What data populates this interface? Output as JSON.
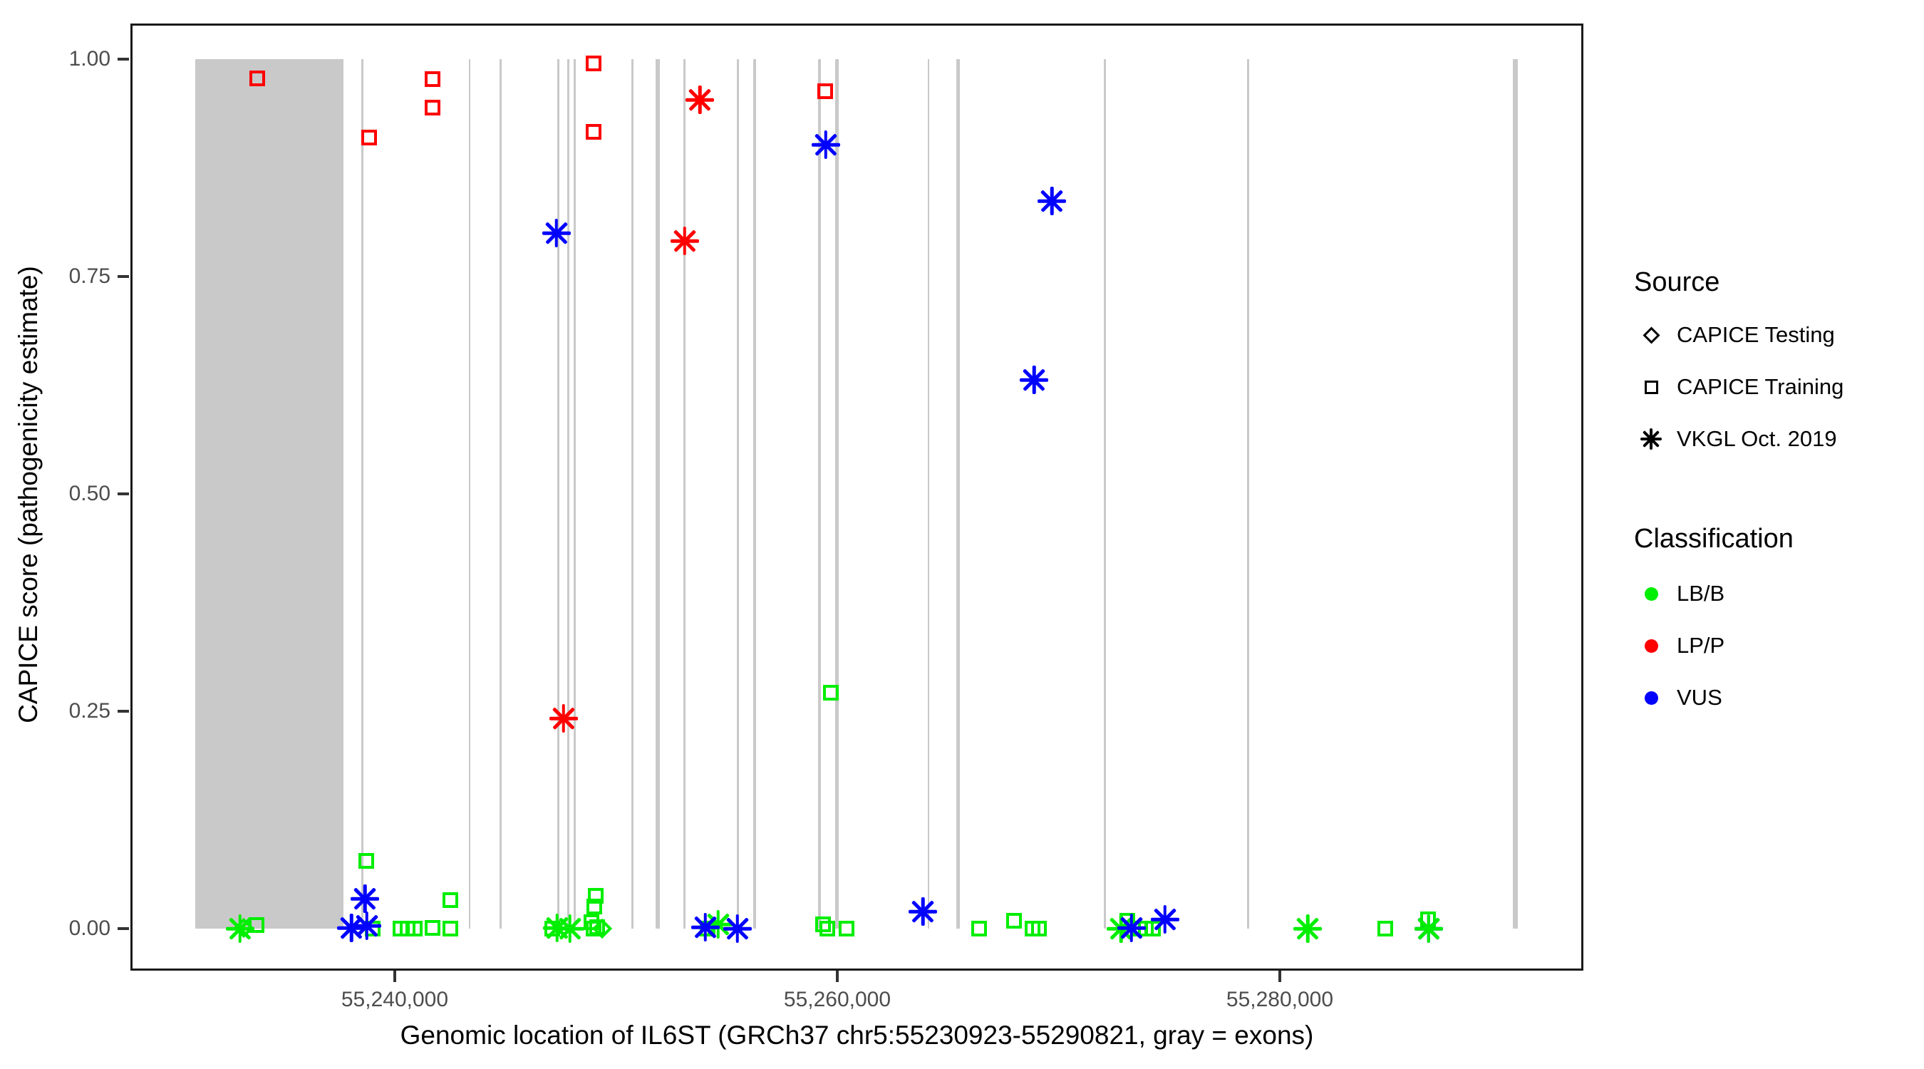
{
  "figure": {
    "background": "#ffffff",
    "panel_border_color": "#1a1a1a",
    "exon_color": "#c9c9c9",
    "tick_text_color": "#4d4d4d"
  },
  "y_axis": {
    "title": "CAPICE score (pathogenicity estimate)",
    "ticks": [
      {
        "label": "0.00",
        "value": 0.0
      },
      {
        "label": "0.25",
        "value": 0.25
      },
      {
        "label": "0.50",
        "value": 0.5
      },
      {
        "label": "0.75",
        "value": 0.75
      },
      {
        "label": "1.00",
        "value": 1.0
      }
    ]
  },
  "x_axis": {
    "title": "Genomic location of IL6ST (GRCh37 chr5:55230923-55290821, gray = exons)",
    "ticks": [
      {
        "label": "55,240,000",
        "value": 55240000
      },
      {
        "label": "55,260,000",
        "value": 55260000
      },
      {
        "label": "55,280,000",
        "value": 55280000
      }
    ]
  },
  "legend": {
    "source": {
      "title": "Source",
      "items": [
        {
          "label": "CAPICE Testing",
          "shape": "diamond"
        },
        {
          "label": "CAPICE Training",
          "shape": "square"
        },
        {
          "label": "VKGL Oct. 2019",
          "shape": "star"
        }
      ]
    },
    "classification": {
      "title": "Classification",
      "items": [
        {
          "label": "LB/B",
          "color": "#00ee00"
        },
        {
          "label": "LP/P",
          "color": "#ff0000"
        },
        {
          "label": "VUS",
          "color": "#0000ff"
        }
      ]
    }
  },
  "chart_data": {
    "type": "scatter",
    "title": "",
    "xlabel": "Genomic location of IL6ST (GRCh37 chr5:55230923-55290821, gray = exons)",
    "ylabel": "CAPICE score (pathogenicity estimate)",
    "x_limits_bp": [
      55228053,
      55293720
    ],
    "y_limits": [
      -0.0484,
      1.041
    ],
    "grid": "off",
    "legend_position": "right",
    "class_colors": {
      "LB/B": "#00ee00",
      "LP/P": "#ff0000",
      "VUS": "#0000ff"
    },
    "source_shapes": {
      "CAPICE Testing": "diamond",
      "CAPICE Training": "square",
      "VKGL Oct. 2019": "star"
    },
    "exons_bp": [
      {
        "start": 55230980,
        "end": 55237680
      },
      {
        "start": 55238480,
        "end": 55238570
      },
      {
        "start": 55243340,
        "end": 55243430
      },
      {
        "start": 55244730,
        "end": 55244820
      },
      {
        "start": 55247330,
        "end": 55247430
      },
      {
        "start": 55247790,
        "end": 55247880
      },
      {
        "start": 55248080,
        "end": 55248170
      },
      {
        "start": 55250690,
        "end": 55250790
      },
      {
        "start": 55251790,
        "end": 55251990
      },
      {
        "start": 55253050,
        "end": 55253130
      },
      {
        "start": 55255460,
        "end": 55255530
      },
      {
        "start": 55256200,
        "end": 55256330
      },
      {
        "start": 55259120,
        "end": 55259270
      },
      {
        "start": 55259920,
        "end": 55260080
      },
      {
        "start": 55264090,
        "end": 55264170
      },
      {
        "start": 55265390,
        "end": 55265550
      },
      {
        "start": 55272030,
        "end": 55272130
      },
      {
        "start": 55278530,
        "end": 55278630
      },
      {
        "start": 55290540,
        "end": 55290770
      }
    ],
    "points": [
      {
        "bp": 55233000,
        "score": 0.0,
        "class": "LB/B",
        "source": "VKGL Oct. 2019"
      },
      {
        "bp": 55233180,
        "score": 0.001,
        "class": "LB/B",
        "source": "CAPICE Testing"
      },
      {
        "bp": 55233750,
        "score": 0.004,
        "class": "LB/B",
        "source": "CAPICE Training"
      },
      {
        "bp": 55238710,
        "score": 0.078,
        "class": "LB/B",
        "source": "CAPICE Training"
      },
      {
        "bp": 55239000,
        "score": 0.0,
        "class": "LB/B",
        "source": "CAPICE Training"
      },
      {
        "bp": 55240260,
        "score": 0.0,
        "class": "LB/B",
        "source": "CAPICE Training"
      },
      {
        "bp": 55240580,
        "score": 0.0,
        "class": "LB/B",
        "source": "CAPICE Training"
      },
      {
        "bp": 55240900,
        "score": 0.0,
        "class": "LB/B",
        "source": "CAPICE Training"
      },
      {
        "bp": 55241710,
        "score": 0.001,
        "class": "LB/B",
        "source": "CAPICE Training"
      },
      {
        "bp": 55242510,
        "score": 0.033,
        "class": "LB/B",
        "source": "CAPICE Training"
      },
      {
        "bp": 55242510,
        "score": 0.0,
        "class": "LB/B",
        "source": "CAPICE Training"
      },
      {
        "bp": 55247120,
        "score": 0.0,
        "class": "LB/B",
        "source": "CAPICE Training"
      },
      {
        "bp": 55247340,
        "score": 0.001,
        "class": "LB/B",
        "source": "VKGL Oct. 2019"
      },
      {
        "bp": 55247920,
        "score": 0.0,
        "class": "LB/B",
        "source": "VKGL Oct. 2019"
      },
      {
        "bp": 55249080,
        "score": 0.038,
        "class": "LB/B",
        "source": "CAPICE Training"
      },
      {
        "bp": 55249020,
        "score": 0.025,
        "class": "LB/B",
        "source": "CAPICE Training"
      },
      {
        "bp": 55248890,
        "score": 0.007,
        "class": "LB/B",
        "source": "CAPICE Training"
      },
      {
        "bp": 55249150,
        "score": 0.002,
        "class": "LB/B",
        "source": "CAPICE Training"
      },
      {
        "bp": 55248990,
        "score": 0.0,
        "class": "LB/B",
        "source": "CAPICE Training"
      },
      {
        "bp": 55249370,
        "score": 0.0,
        "class": "LB/B",
        "source": "CAPICE Testing"
      },
      {
        "bp": 55254130,
        "score": 0.0,
        "class": "LB/B",
        "source": "CAPICE Training"
      },
      {
        "bp": 55254620,
        "score": 0.005,
        "class": "LB/B",
        "source": "VKGL Oct. 2019"
      },
      {
        "bp": 55259710,
        "score": 0.271,
        "class": "LB/B",
        "source": "CAPICE Training"
      },
      {
        "bp": 55259350,
        "score": 0.005,
        "class": "LB/B",
        "source": "CAPICE Training"
      },
      {
        "bp": 55259550,
        "score": 0.0,
        "class": "LB/B",
        "source": "CAPICE Training"
      },
      {
        "bp": 55260420,
        "score": 0.0,
        "class": "LB/B",
        "source": "CAPICE Training"
      },
      {
        "bp": 55266420,
        "score": 0.0,
        "class": "LB/B",
        "source": "CAPICE Training"
      },
      {
        "bp": 55268000,
        "score": 0.009,
        "class": "LB/B",
        "source": "CAPICE Training"
      },
      {
        "bp": 55268840,
        "score": 0.0,
        "class": "LB/B",
        "source": "CAPICE Training"
      },
      {
        "bp": 55269100,
        "score": 0.0,
        "class": "LB/B",
        "source": "CAPICE Training"
      },
      {
        "bp": 55272830,
        "score": 0.0,
        "class": "LB/B",
        "source": "VKGL Oct. 2019"
      },
      {
        "bp": 55273120,
        "score": 0.009,
        "class": "LB/B",
        "source": "CAPICE Training"
      },
      {
        "bp": 55273640,
        "score": 0.0,
        "class": "LB/B",
        "source": "CAPICE Training"
      },
      {
        "bp": 55273960,
        "score": 0.0,
        "class": "LB/B",
        "source": "CAPICE Training"
      },
      {
        "bp": 55274280,
        "score": 0.0,
        "class": "LB/B",
        "source": "CAPICE Training"
      },
      {
        "bp": 55281270,
        "score": 0.0,
        "class": "LB/B",
        "source": "VKGL Oct. 2019"
      },
      {
        "bp": 55284780,
        "score": 0.0,
        "class": "LB/B",
        "source": "CAPICE Training"
      },
      {
        "bp": 55286710,
        "score": 0.011,
        "class": "LB/B",
        "source": "CAPICE Training"
      },
      {
        "bp": 55286730,
        "score": 0.0,
        "class": "VUS",
        "source": "VKGL Oct. 2019"
      },
      {
        "bp": 55286730,
        "score": 0.0,
        "class": "LB/B",
        "source": "VKGL Oct. 2019"
      },
      {
        "bp": 55238650,
        "score": 0.034,
        "class": "VUS",
        "source": "VKGL Oct. 2019"
      },
      {
        "bp": 55238040,
        "score": 0.001,
        "class": "VUS",
        "source": "VKGL Oct. 2019"
      },
      {
        "bp": 55238740,
        "score": 0.003,
        "class": "VUS",
        "source": "VKGL Oct. 2019"
      },
      {
        "bp": 55254040,
        "score": 0.002,
        "class": "VUS",
        "source": "VKGL Oct. 2019"
      },
      {
        "bp": 55255490,
        "score": 0.0,
        "class": "VUS",
        "source": "VKGL Oct. 2019"
      },
      {
        "bp": 55263870,
        "score": 0.02,
        "class": "VUS",
        "source": "VKGL Oct. 2019"
      },
      {
        "bp": 55273300,
        "score": 0.001,
        "class": "VUS",
        "source": "VKGL Oct. 2019"
      },
      {
        "bp": 55274810,
        "score": 0.011,
        "class": "VUS",
        "source": "VKGL Oct. 2019"
      },
      {
        "bp": 55247300,
        "score": 0.8,
        "class": "VUS",
        "source": "VKGL Oct. 2019"
      },
      {
        "bp": 55259480,
        "score": 0.902,
        "class": "VUS",
        "source": "VKGL Oct. 2019"
      },
      {
        "bp": 55269700,
        "score": 0.837,
        "class": "VUS",
        "source": "VKGL Oct. 2019"
      },
      {
        "bp": 55268900,
        "score": 0.631,
        "class": "VUS",
        "source": "VKGL Oct. 2019"
      },
      {
        "bp": 55233800,
        "score": 0.978,
        "class": "LP/P",
        "source": "CAPICE Training"
      },
      {
        "bp": 55238850,
        "score": 0.91,
        "class": "LP/P",
        "source": "CAPICE Training"
      },
      {
        "bp": 55241700,
        "score": 0.977,
        "class": "LP/P",
        "source": "CAPICE Training"
      },
      {
        "bp": 55241700,
        "score": 0.944,
        "class": "LP/P",
        "source": "CAPICE Training"
      },
      {
        "bp": 55249000,
        "score": 0.995,
        "class": "LP/P",
        "source": "CAPICE Training"
      },
      {
        "bp": 55249000,
        "score": 0.916,
        "class": "LP/P",
        "source": "CAPICE Training"
      },
      {
        "bp": 55259450,
        "score": 0.963,
        "class": "LP/P",
        "source": "CAPICE Training"
      },
      {
        "bp": 55253800,
        "score": 0.953,
        "class": "LP/P",
        "source": "VKGL Oct. 2019"
      },
      {
        "bp": 55253100,
        "score": 0.791,
        "class": "LP/P",
        "source": "VKGL Oct. 2019"
      },
      {
        "bp": 55247630,
        "score": 0.242,
        "class": "LP/P",
        "source": "VKGL Oct. 2019"
      }
    ]
  }
}
